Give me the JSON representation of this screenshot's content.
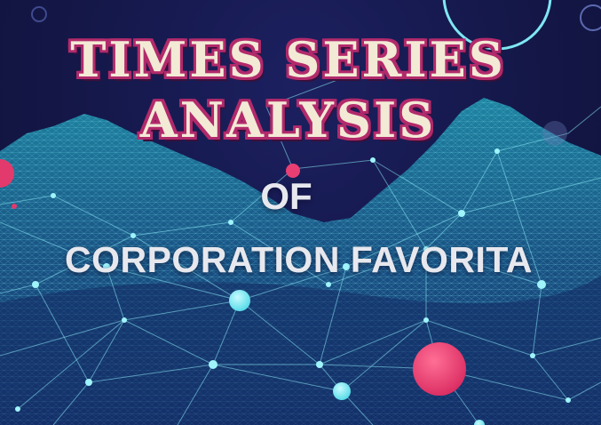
{
  "title": {
    "line1": "TIMES SERIES",
    "line2": "ANALYSIS"
  },
  "subtitle": {
    "of": "OF",
    "company": "CORPORATION FAVORITA"
  },
  "colors": {
    "background": "#16184f",
    "title_fill": "#f3ead6",
    "title_outline": "#b22a6b",
    "subtitle": "#e7e8ee",
    "network_cyan": "#5fe3ee",
    "accent_pink": "#e8386f"
  }
}
